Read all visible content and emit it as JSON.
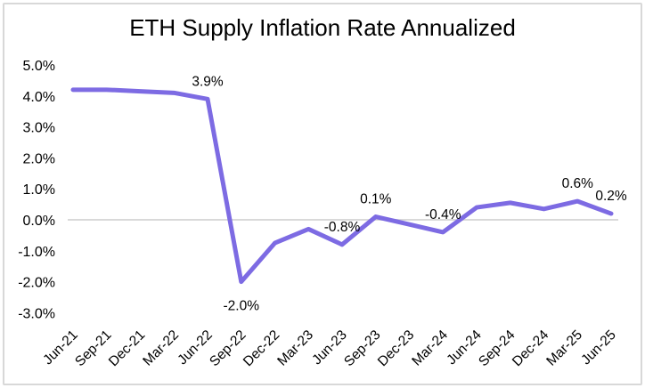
{
  "chart_data": {
    "type": "line",
    "title": "ETH Supply Inflation Rate Annualized",
    "categories": [
      "Jun-21",
      "Sep-21",
      "Dec-21",
      "Mar-22",
      "Jun-22",
      "Sep-22",
      "Dec-22",
      "Mar-23",
      "Jun-23",
      "Sep-23",
      "Dec-23",
      "Mar-24",
      "Jun-24",
      "Sep-24",
      "Dec-24",
      "Mar-25",
      "Jun-25"
    ],
    "values": [
      4.2,
      4.2,
      4.15,
      4.1,
      3.9,
      -2.0,
      -0.75,
      -0.3,
      -0.8,
      0.1,
      -0.15,
      -0.4,
      0.4,
      0.55,
      0.35,
      0.6,
      0.2
    ],
    "data_labels": [
      {
        "index": 4,
        "text": "3.9%",
        "position": "above"
      },
      {
        "index": 5,
        "text": "-2.0%",
        "position": "below"
      },
      {
        "index": 8,
        "text": "-0.8%",
        "position": "above"
      },
      {
        "index": 9,
        "text": "0.1%",
        "position": "above"
      },
      {
        "index": 11,
        "text": "-0.4%",
        "position": "above"
      },
      {
        "index": 15,
        "text": "0.6%",
        "position": "above"
      },
      {
        "index": 16,
        "text": "0.2%",
        "position": "above"
      }
    ],
    "y_axis": {
      "ylim": [
        -3,
        5
      ],
      "ticks": [
        {
          "value": 5,
          "label": "5.0%"
        },
        {
          "value": 4,
          "label": "4.0%"
        },
        {
          "value": 3,
          "label": "3.0%"
        },
        {
          "value": 2,
          "label": "2.0%"
        },
        {
          "value": 1,
          "label": "1.0%"
        },
        {
          "value": 0,
          "label": "0.0%"
        },
        {
          "value": -1,
          "label": "-1.0%"
        },
        {
          "value": -2,
          "label": "-2.0%"
        },
        {
          "value": -3,
          "label": "-3.0%"
        }
      ]
    },
    "xlabel": "",
    "ylabel": "",
    "grid": "zero-line-only",
    "legend": "none",
    "colors": {
      "line": "#7D6BE3",
      "gridline": "#D9D9D9",
      "text": "#000000",
      "frame_border": "#D8D8D8",
      "background": "#FFFFFF"
    }
  }
}
